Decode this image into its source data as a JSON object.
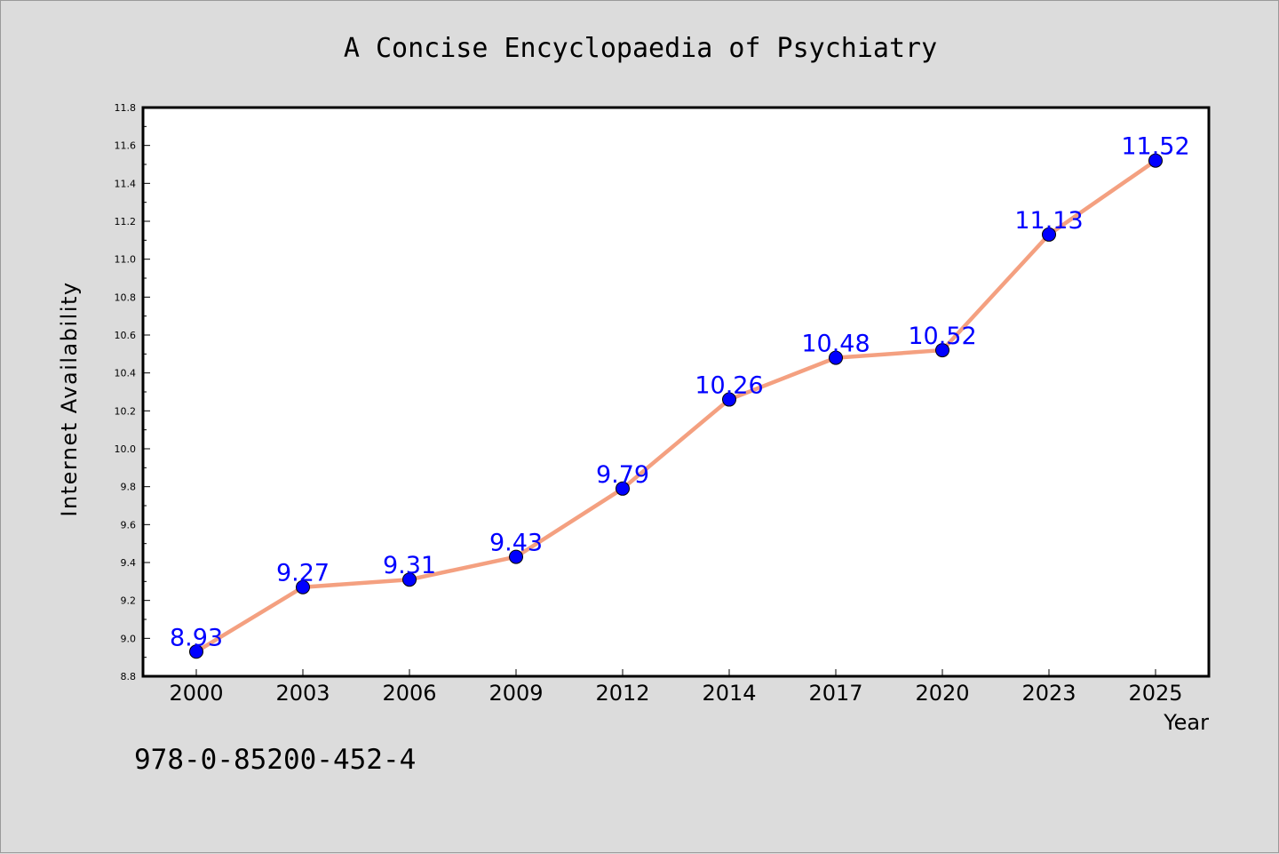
{
  "chart_data": {
    "type": "line",
    "title": "A Concise Encyclopaedia of Psychiatry",
    "xlabel": "Year",
    "ylabel": "Internet Availability",
    "categories": [
      "2000",
      "2003",
      "2006",
      "2009",
      "2012",
      "2014",
      "2017",
      "2020",
      "2023",
      "2025"
    ],
    "series": [
      {
        "values": [
          8.93,
          9.27,
          9.31,
          9.43,
          9.79,
          10.26,
          10.48,
          10.52,
          11.13,
          11.52
        ],
        "line_color": "#f4a080",
        "marker_color": "#0000ff"
      }
    ],
    "data_labels": [
      "8.93",
      "9.27",
      "9.31",
      "9.43",
      "9.79",
      "10.26",
      "10.48",
      "10.52",
      "11.13",
      "11.52"
    ],
    "ylim": [
      8.8,
      11.8
    ],
    "yticks": [
      "8.8",
      "9.0",
      "9.2",
      "9.4",
      "9.6",
      "9.8",
      "10.0",
      "10.2",
      "10.4",
      "10.6",
      "10.8",
      "11.0",
      "11.2",
      "11.4",
      "11.6",
      "11.8"
    ],
    "grid": false,
    "legend": "none"
  },
  "footer": {
    "isbn": "978-0-85200-452-4"
  },
  "colors": {
    "background": "#dcdcdc",
    "plot_background": "#ffffff",
    "line": "#f4a080",
    "marker": "#0000ff",
    "data_label": "#0000ff"
  }
}
